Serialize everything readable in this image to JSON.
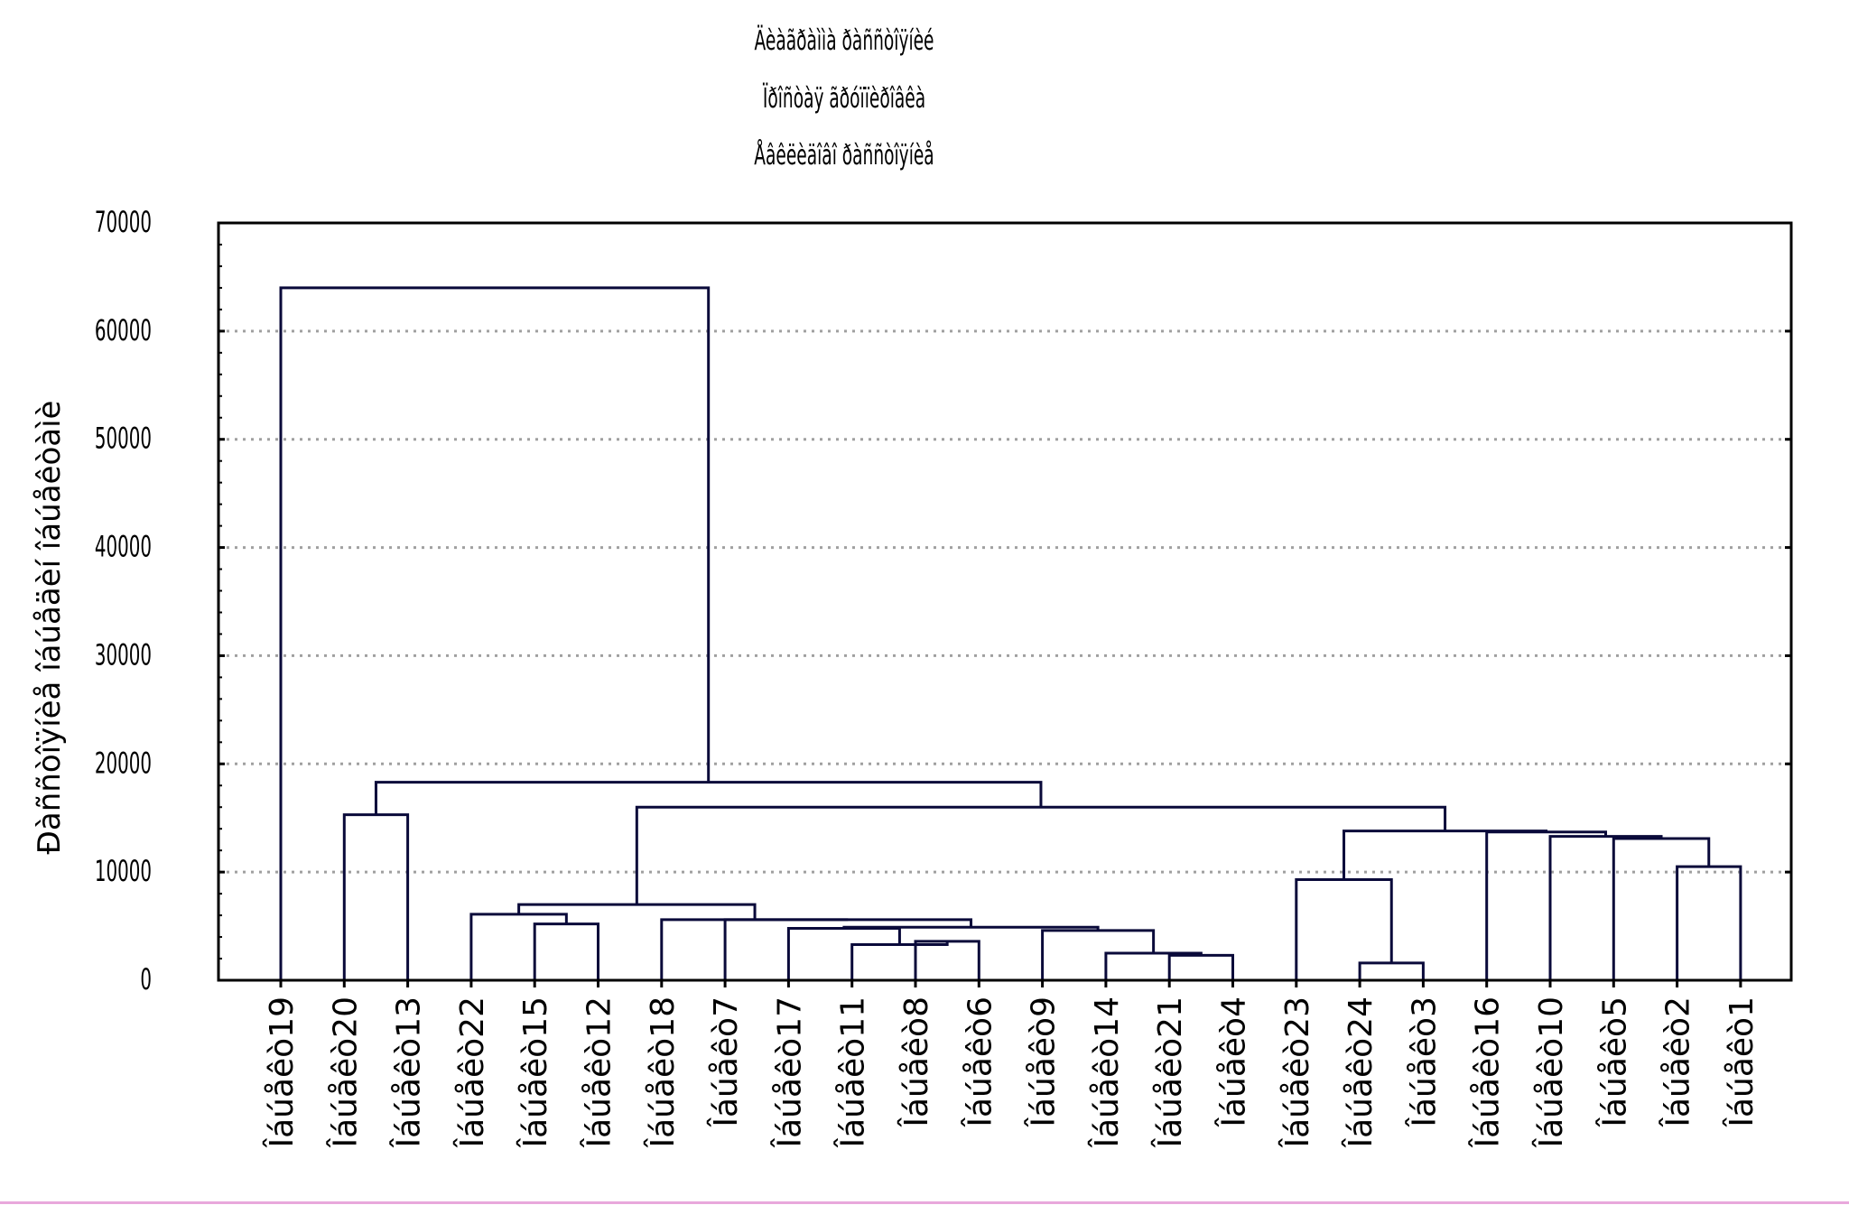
{
  "title_lines": [
    "Äèàãðàììà ðàññòîÿíèé",
    "Ïðîñòàÿ ãðóïïèðîâêà",
    "Åâêëèäîâî ðàññòîÿíèå"
  ],
  "chart_data": {
    "type": "dendrogram",
    "ylabel": "Ðàññòîÿíèå îáúåäèí îáúåêòàìè",
    "ylim": [
      0,
      70000
    ],
    "yticks": [
      0,
      10000,
      20000,
      30000,
      40000,
      50000,
      60000,
      70000
    ],
    "grid": "horizontal dotted",
    "leaves": [
      "Îáúåêò19",
      "Îáúåêò20",
      "Îáúåêò13",
      "Îáúåêò22",
      "Îáúåêò15",
      "Îáúåêò12",
      "Îáúåêò18",
      "Îáúåêò7",
      "Îáúåêò17",
      "Îáúåêò11",
      "Îáúåêò8",
      "Îáúåêò6",
      "Îáúåêò9",
      "Îáúåêò14",
      "Îáúåêò21",
      "Îáúåêò4",
      "Îáúåêò23",
      "Îáúåêò24",
      "Îáúåêò3",
      "Îáúåêò16",
      "Îáúåêò10",
      "Îáúåêò5",
      "Îáúåêò2",
      "Îáúåêò1"
    ],
    "links": [
      {
        "left": 15,
        "right": 14,
        "height": 2300
      },
      {
        "left": 13,
        "right": "c1",
        "height": 2500
      },
      {
        "left": 12,
        "right": "c2",
        "height": 4600
      },
      {
        "left": 10,
        "right": 11,
        "height": 3600
      },
      {
        "left": 9,
        "right": "c4",
        "height": 3300
      },
      {
        "left": 8,
        "right": "c5",
        "height": 4800
      },
      {
        "left": "c6",
        "right": "c3",
        "height": 4900
      },
      {
        "left": 7,
        "right": "c7",
        "height": 5600
      },
      {
        "left": 6,
        "right": "c8",
        "height": 5600
      },
      {
        "left": 5,
        "right": 4,
        "height": 5200
      },
      {
        "left": 3,
        "right": "c10",
        "height": 6100
      },
      {
        "left": "c11",
        "right": "c9",
        "height": 7000
      },
      {
        "left": 18,
        "right": 17,
        "height": 1600
      },
      {
        "left": 16,
        "right": "c13",
        "height": 9300
      },
      {
        "left": 23,
        "right": 22,
        "height": 10500
      },
      {
        "left": 21,
        "right": "c15",
        "height": 13100
      },
      {
        "left": 20,
        "right": "c16",
        "height": 13300
      },
      {
        "left": 19,
        "right": "c17",
        "height": 13700
      },
      {
        "left": "c14",
        "right": "c18",
        "height": 13800
      },
      {
        "left": "c12",
        "right": "c19",
        "height": 16000
      },
      {
        "left": 2,
        "right": 1,
        "height": 15300
      },
      {
        "left": "c21",
        "right": "c20",
        "height": 18300
      },
      {
        "left": 0,
        "right": "c22",
        "height": 64000
      }
    ]
  }
}
